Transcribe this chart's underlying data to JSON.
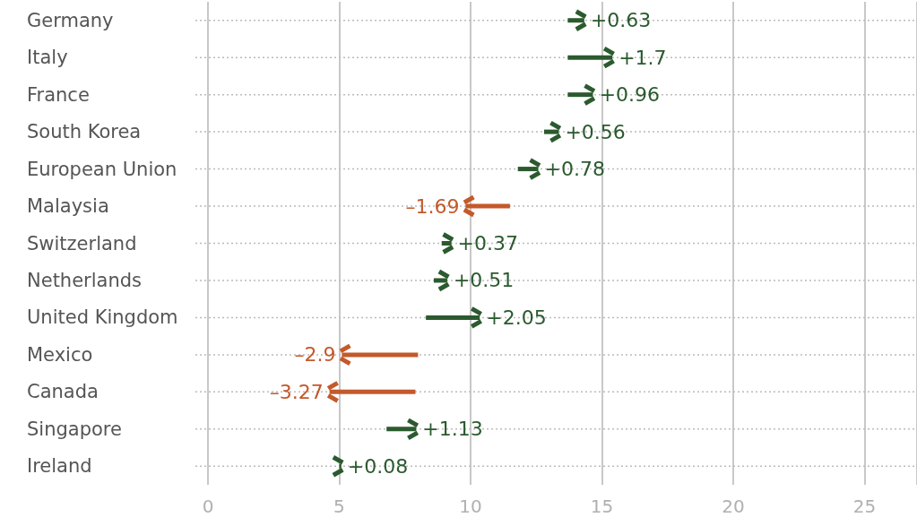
{
  "chart_data": {
    "type": "bar",
    "orientation": "horizontal",
    "categories": [
      "Germany",
      "Italy",
      "France",
      "South Korea",
      "European Union",
      "Malaysia",
      "Switzerland",
      "Netherlands",
      "United Kingdom",
      "Mexico",
      "Canada",
      "Singapore",
      "Ireland"
    ],
    "base": [
      13.7,
      13.7,
      13.7,
      12.8,
      11.8,
      11.5,
      8.9,
      8.6,
      8.3,
      8.0,
      7.9,
      6.8,
      5.0
    ],
    "values": [
      0.63,
      1.7,
      0.96,
      0.56,
      0.78,
      -1.69,
      0.37,
      0.51,
      2.05,
      -2.9,
      -3.27,
      1.13,
      0.08
    ],
    "value_labels": [
      "+0.63",
      "+1.7",
      "+0.96",
      "+0.56",
      "+0.78",
      "–1.69",
      "+0.37",
      "+0.51",
      "+2.05",
      "–2.9",
      "–3.27",
      "+1.13",
      "+0.08"
    ],
    "colors": [
      "#2b5a2e",
      "#2b5a2e",
      "#2b5a2e",
      "#2b5a2e",
      "#2b5a2e",
      "#c4592a",
      "#2b5a2e",
      "#2b5a2e",
      "#2b5a2e",
      "#c4592a",
      "#c4592a",
      "#2b5a2e",
      "#2b5a2e"
    ],
    "xlim": [
      0,
      27
    ],
    "xticks": [
      0,
      5,
      10,
      15,
      20,
      25
    ],
    "grid": true
  }
}
